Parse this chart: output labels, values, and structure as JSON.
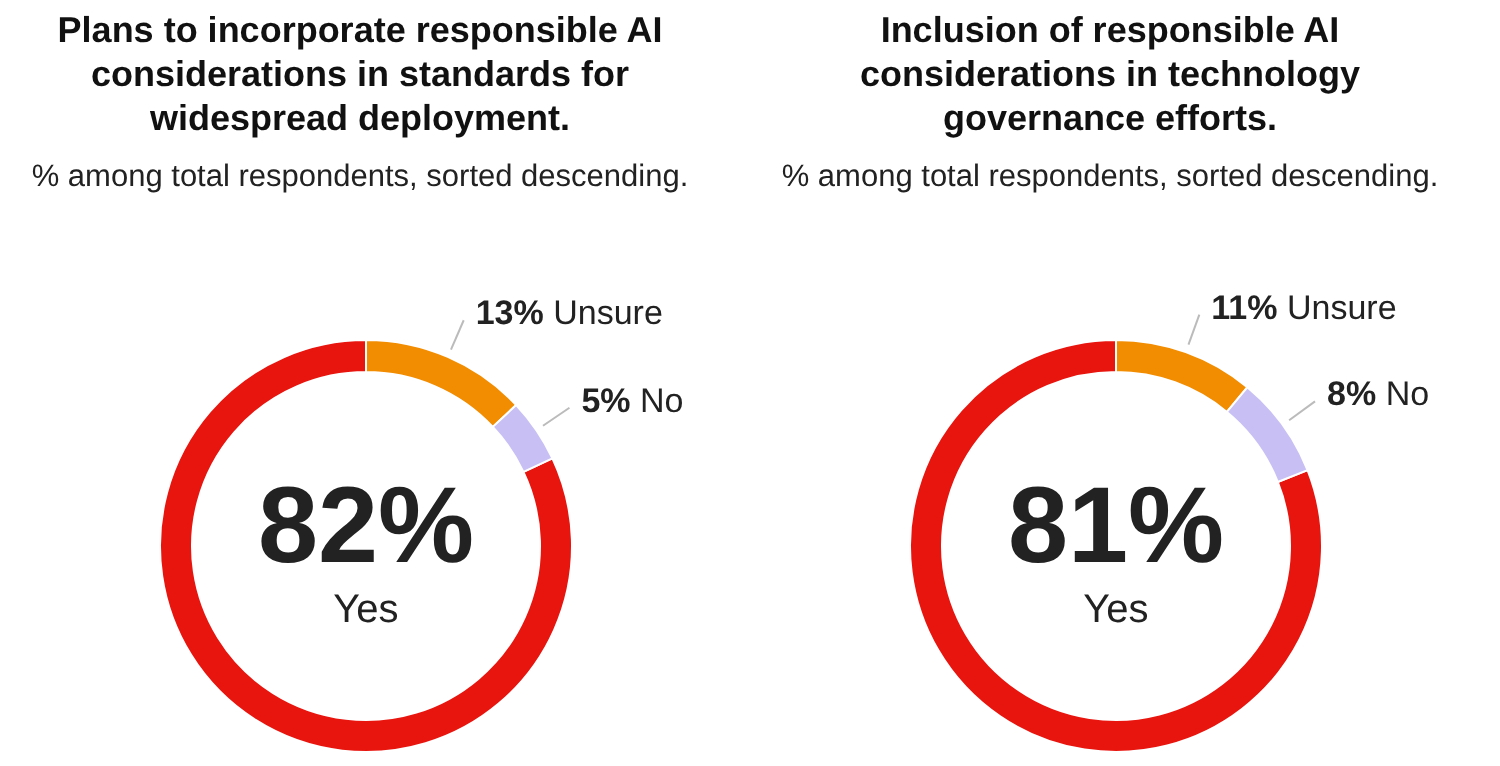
{
  "chart_data": [
    {
      "type": "donut",
      "title": "Plans to incorporate responsible AI considerations in standards for widespread deployment.",
      "subtitle": "% among total respondents, sorted descending.",
      "categories": [
        "Yes",
        "Unsure",
        "No"
      ],
      "values": [
        82,
        13,
        5
      ],
      "colors": [
        "#e8140e",
        "#f28c00",
        "#c8bff4"
      ],
      "value_labels": [
        "82%",
        "13%",
        "5%"
      ],
      "legend": false
    },
    {
      "type": "donut",
      "title": "Inclusion of responsible AI considerations in technology governance efforts.",
      "subtitle": "% among total respondents, sorted descending.",
      "categories": [
        "Yes",
        "Unsure",
        "No"
      ],
      "values": [
        81,
        11,
        8
      ],
      "colors": [
        "#e8140e",
        "#f28c00",
        "#c8bff4"
      ],
      "value_labels": [
        "81%",
        "11%",
        "8%"
      ],
      "legend": false
    }
  ]
}
